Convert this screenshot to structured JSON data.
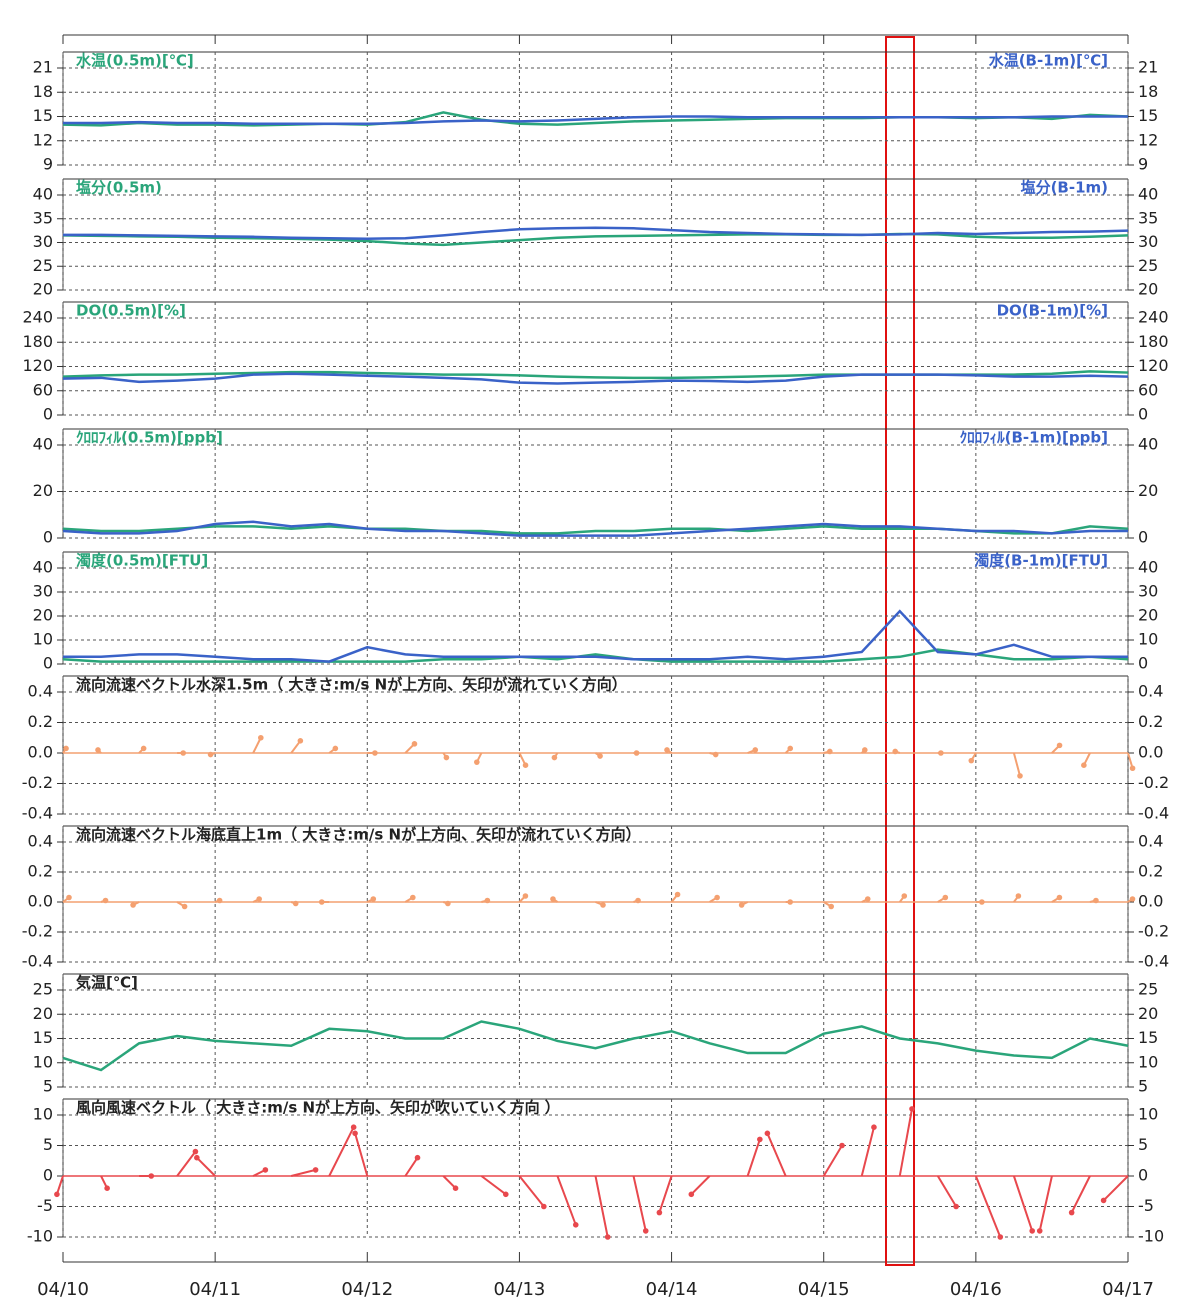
{
  "chart_data": [
    {
      "type": "line",
      "title": "水温(0.5m)[℃]",
      "title_right": "水温(B-1m)[℃]",
      "ylim": [
        9,
        21
      ],
      "yticks": [
        9,
        12,
        15,
        18,
        21
      ],
      "xlim": [
        0,
        7
      ],
      "xticks": [
        0,
        1,
        2,
        3,
        4,
        5,
        6,
        7
      ],
      "x": [
        0,
        0.25,
        0.5,
        0.75,
        1,
        1.25,
        1.5,
        1.75,
        2,
        2.25,
        2.5,
        2.75,
        3,
        3.25,
        3.5,
        3.75,
        4,
        4.25,
        4.5,
        4.75,
        5,
        5.25,
        5.5,
        5.75,
        6,
        6.25,
        6.5,
        6.75,
        7
      ],
      "series": [
        {
          "color": "#2aa57a",
          "values": [
            14.0,
            13.9,
            14.2,
            14.0,
            14.0,
            13.9,
            14.0,
            14.1,
            14.0,
            14.3,
            15.5,
            14.6,
            14.1,
            14.0,
            14.2,
            14.4,
            14.5,
            14.6,
            14.7,
            14.8,
            14.8,
            14.8,
            14.9,
            14.9,
            14.8,
            14.9,
            14.7,
            15.2,
            15.0
          ]
        },
        {
          "color": "#3a62c8",
          "values": [
            14.2,
            14.2,
            14.3,
            14.2,
            14.2,
            14.1,
            14.1,
            14.1,
            14.1,
            14.2,
            14.4,
            14.5,
            14.4,
            14.5,
            14.7,
            14.9,
            15.0,
            15.0,
            14.9,
            14.9,
            14.9,
            14.9,
            14.9,
            14.9,
            14.9,
            14.9,
            15.0,
            15.0,
            15.0
          ]
        }
      ]
    },
    {
      "type": "line",
      "title": "塩分(0.5m)",
      "title_right": "塩分(B-1m)",
      "ylim": [
        20,
        40
      ],
      "yticks": [
        20,
        25,
        30,
        35,
        40
      ],
      "xlim": [
        0,
        7
      ],
      "xticks": [
        0,
        1,
        2,
        3,
        4,
        5,
        6,
        7
      ],
      "x": [
        0,
        0.25,
        0.5,
        0.75,
        1,
        1.25,
        1.5,
        1.75,
        2,
        2.25,
        2.5,
        2.75,
        3,
        3.25,
        3.5,
        3.75,
        4,
        4.25,
        4.5,
        4.75,
        5,
        5.25,
        5.5,
        5.75,
        6,
        6.25,
        6.5,
        6.75,
        7
      ],
      "series": [
        {
          "color": "#2aa57a",
          "values": [
            31.5,
            31.4,
            31.3,
            31.2,
            31.0,
            30.9,
            30.8,
            30.6,
            30.3,
            29.8,
            29.5,
            30.0,
            30.5,
            31.0,
            31.3,
            31.4,
            31.5,
            31.6,
            31.7,
            31.7,
            31.6,
            31.6,
            31.8,
            31.7,
            31.2,
            31.0,
            31.0,
            31.2,
            31.5
          ]
        },
        {
          "color": "#3a62c8",
          "values": [
            31.6,
            31.6,
            31.5,
            31.4,
            31.3,
            31.2,
            31.0,
            30.9,
            30.8,
            30.9,
            31.5,
            32.2,
            32.8,
            33.0,
            33.1,
            33.0,
            32.6,
            32.2,
            32.0,
            31.8,
            31.7,
            31.6,
            31.7,
            32.0,
            31.8,
            32.0,
            32.2,
            32.3,
            32.5
          ]
        }
      ]
    },
    {
      "type": "line",
      "title": "DO(0.5m)[%]",
      "title_right": "DO(B-1m)[%]",
      "ylim": [
        0,
        240
      ],
      "yticks": [
        0,
        60,
        120,
        180,
        240
      ],
      "xlim": [
        0,
        7
      ],
      "xticks": [
        0,
        1,
        2,
        3,
        4,
        5,
        6,
        7
      ],
      "x": [
        0,
        0.25,
        0.5,
        0.75,
        1,
        1.25,
        1.5,
        1.75,
        2,
        2.25,
        2.5,
        2.75,
        3,
        3.25,
        3.5,
        3.75,
        4,
        4.25,
        4.5,
        4.75,
        5,
        5.25,
        5.5,
        5.75,
        6,
        6.25,
        6.5,
        6.75,
        7
      ],
      "series": [
        {
          "color": "#2aa57a",
          "values": [
            95,
            98,
            100,
            100,
            102,
            104,
            106,
            106,
            104,
            102,
            100,
            100,
            98,
            95,
            93,
            92,
            92,
            93,
            95,
            97,
            100,
            100,
            100,
            100,
            100,
            100,
            102,
            108,
            105
          ]
        },
        {
          "color": "#3a62c8",
          "values": [
            90,
            92,
            82,
            85,
            90,
            100,
            102,
            100,
            97,
            95,
            92,
            88,
            80,
            78,
            80,
            82,
            85,
            84,
            82,
            85,
            95,
            100,
            100,
            100,
            98,
            95,
            95,
            97,
            95
          ]
        }
      ]
    },
    {
      "type": "line",
      "title": "ｸﾛﾛﾌｨﾙ(0.5m)[ppb]",
      "title_right": "ｸﾛﾛﾌｨﾙ(B-1m)[ppb]",
      "ylim": [
        0,
        40
      ],
      "yticks": [
        0,
        20,
        40
      ],
      "xlim": [
        0,
        7
      ],
      "xticks": [
        0,
        1,
        2,
        3,
        4,
        5,
        6,
        7
      ],
      "x": [
        0,
        0.25,
        0.5,
        0.75,
        1,
        1.25,
        1.5,
        1.75,
        2,
        2.25,
        2.5,
        2.75,
        3,
        3.25,
        3.5,
        3.75,
        4,
        4.25,
        4.5,
        4.75,
        5,
        5.25,
        5.5,
        5.75,
        6,
        6.25,
        6.5,
        6.75,
        7
      ],
      "series": [
        {
          "color": "#2aa57a",
          "values": [
            4,
            3,
            3,
            4,
            5,
            5,
            4,
            5,
            4,
            4,
            3,
            3,
            2,
            2,
            3,
            3,
            4,
            4,
            3,
            4,
            5,
            4,
            4,
            4,
            3,
            2,
            2,
            5,
            4
          ]
        },
        {
          "color": "#3a62c8",
          "values": [
            3,
            2,
            2,
            3,
            6,
            7,
            5,
            6,
            4,
            3,
            3,
            2,
            1,
            1,
            1,
            1,
            2,
            3,
            4,
            5,
            6,
            5,
            5,
            4,
            3,
            3,
            2,
            3,
            3
          ]
        }
      ]
    },
    {
      "type": "line",
      "title": "濁度(0.5m)[FTU]",
      "title_right": "濁度(B-1m)[FTU]",
      "ylim": [
        0,
        40
      ],
      "yticks": [
        0,
        10,
        20,
        30,
        40
      ],
      "xlim": [
        0,
        7
      ],
      "xticks": [
        0,
        1,
        2,
        3,
        4,
        5,
        6,
        7
      ],
      "x": [
        0,
        0.25,
        0.5,
        0.75,
        1,
        1.25,
        1.5,
        1.75,
        2,
        2.25,
        2.5,
        2.75,
        3,
        3.25,
        3.5,
        3.75,
        4,
        4.25,
        4.5,
        4.75,
        5,
        5.25,
        5.5,
        5.75,
        6,
        6.25,
        6.5,
        6.75,
        7
      ],
      "series": [
        {
          "color": "#2aa57a",
          "values": [
            2,
            1,
            1,
            1,
            1,
            1,
            1,
            1,
            1,
            1,
            2,
            2,
            3,
            2,
            4,
            2,
            1,
            1,
            1,
            1,
            1,
            2,
            3,
            6,
            4,
            2,
            2,
            3,
            2
          ]
        },
        {
          "color": "#3a62c8",
          "values": [
            3,
            3,
            4,
            4,
            3,
            2,
            2,
            1,
            7,
            4,
            3,
            3,
            3,
            3,
            3,
            2,
            2,
            2,
            3,
            2,
            3,
            5,
            22,
            5,
            4,
            8,
            3,
            3,
            3
          ]
        }
      ]
    },
    {
      "type": "vector",
      "title": "流向流速ベクトル水深1.5m（ 大きさ:m/s  Nが上方向、矢印が流れていく方向）",
      "ylim": [
        -0.4,
        0.4
      ],
      "yticks": [
        -0.4,
        -0.2,
        {
          "value": 0,
          "label": "0.0"
        },
        0.2,
        0.4
      ],
      "xlim": [
        0,
        7
      ],
      "xticks": [
        0,
        1,
        2,
        3,
        4,
        5,
        6,
        7
      ],
      "color": "#f4a070",
      "x": [
        0,
        0.25,
        0.5,
        0.75,
        1,
        1.25,
        1.5,
        1.75,
        2,
        2.25,
        2.5,
        2.75,
        3,
        3.25,
        3.5,
        3.75,
        4,
        4.25,
        4.5,
        4.75,
        5,
        5.25,
        5.5,
        5.75,
        6,
        6.25,
        6.5,
        6.75,
        7
      ],
      "u": [
        0.02,
        -0.02,
        0.03,
        0.04,
        -0.03,
        0.05,
        0.06,
        0.04,
        0.05,
        0.06,
        0.02,
        -0.03,
        0.04,
        -0.02,
        0.03,
        0.02,
        -0.03,
        0.04,
        0.05,
        0.03,
        0.04,
        0.02,
        -0.03,
        0.02,
        -0.03,
        0.04,
        0.05,
        -0.04,
        0.03
      ],
      "v": [
        0.03,
        0.02,
        0.03,
        0,
        -0.01,
        0.1,
        0.08,
        0.03,
        0,
        0.06,
        -0.03,
        -0.06,
        -0.08,
        -0.03,
        -0.02,
        0,
        0.02,
        -0.01,
        0.02,
        0.03,
        0.01,
        0.02,
        0.01,
        0,
        -0.05,
        -0.15,
        0.05,
        -0.08,
        -0.1
      ]
    },
    {
      "type": "vector",
      "title": "流向流速ベクトル海底直上1m（ 大きさ:m/s  Nが上方向、矢印が流れていく方向）",
      "ylim": [
        -0.4,
        0.4
      ],
      "yticks": [
        -0.4,
        -0.2,
        {
          "value": 0,
          "label": "0.0"
        },
        0.2,
        0.4
      ],
      "xlim": [
        0,
        7
      ],
      "xticks": [
        0,
        1,
        2,
        3,
        4,
        5,
        6,
        7
      ],
      "color": "#f4a070",
      "x": [
        0,
        0.25,
        0.5,
        0.75,
        1,
        1.25,
        1.5,
        1.75,
        2,
        2.25,
        2.5,
        2.75,
        3,
        3.25,
        3.5,
        3.75,
        4,
        4.25,
        4.5,
        4.75,
        5,
        5.25,
        5.5,
        5.75,
        6,
        6.25,
        6.5,
        6.75,
        7
      ],
      "u": [
        0.04,
        0.03,
        -0.04,
        0.05,
        0.03,
        0.04,
        0.03,
        -0.05,
        0.04,
        0.05,
        0.03,
        0.04,
        0.04,
        -0.03,
        0.05,
        0.03,
        0.04,
        0.05,
        -0.04,
        0.03,
        0.05,
        0.04,
        0.03,
        0.05,
        0.04,
        0.03,
        0.05,
        0.04,
        0.03
      ],
      "v": [
        0.03,
        0.01,
        -0.02,
        -0.03,
        0.01,
        0.02,
        -0.01,
        0,
        0.02,
        0.03,
        -0.01,
        0.01,
        0.04,
        0.02,
        -0.02,
        0.01,
        0.05,
        0.03,
        -0.02,
        0,
        -0.03,
        0.02,
        0.04,
        0.03,
        0,
        0.04,
        0.03,
        0.01,
        0.02
      ]
    },
    {
      "type": "line",
      "title": "気温[℃]",
      "ylim": [
        5,
        25
      ],
      "yticks": [
        5,
        10,
        15,
        20,
        25
      ],
      "xlim": [
        0,
        7
      ],
      "xticks": [
        0,
        1,
        2,
        3,
        4,
        5,
        6,
        7
      ],
      "x": [
        0,
        0.25,
        0.5,
        0.75,
        1,
        1.25,
        1.5,
        1.75,
        2,
        2.25,
        2.5,
        2.75,
        3,
        3.25,
        3.5,
        3.75,
        4,
        4.25,
        4.5,
        4.75,
        5,
        5.25,
        5.5,
        5.75,
        6,
        6.25,
        6.5,
        6.75,
        7
      ],
      "series": [
        {
          "color": "#2aa57a",
          "values": [
            11,
            8.5,
            14,
            15.5,
            14.5,
            14,
            13.5,
            17,
            16.5,
            15,
            15,
            18.5,
            17,
            14.5,
            13,
            15,
            16.5,
            14,
            12,
            12,
            16,
            17.5,
            15,
            14,
            12.5,
            11.5,
            11,
            15,
            13.5
          ]
        }
      ]
    },
    {
      "type": "vector",
      "title": "風向風速ベクトル（ 大きさ:m/s  Nが上方向、矢印が吹いていく方向 ）",
      "ylim": [
        -10,
        10
      ],
      "yticks": [
        -10,
        -5,
        0,
        5,
        10
      ],
      "xlim": [
        0,
        7
      ],
      "xticks": [
        {
          "value": 0,
          "label": "04/10"
        },
        {
          "value": 1,
          "label": "04/11"
        },
        {
          "value": 2,
          "label": "04/12"
        },
        {
          "value": 3,
          "label": "04/13"
        },
        {
          "value": 4,
          "label": "04/14"
        },
        {
          "value": 5,
          "label": "04/15"
        },
        {
          "value": 6,
          "label": "04/16"
        },
        {
          "value": 7,
          "label": "04/17"
        }
      ],
      "color": "#e8484d",
      "x": [
        0,
        0.25,
        0.5,
        0.75,
        1,
        1.25,
        1.5,
        1.75,
        2,
        2.25,
        2.5,
        2.75,
        3,
        3.25,
        3.5,
        3.75,
        4,
        4.25,
        4.5,
        4.75,
        5,
        5.25,
        5.5,
        5.75,
        6,
        6.25,
        6.5,
        6.75,
        7
      ],
      "u": [
        -1,
        1,
        2,
        3,
        -3,
        2,
        4,
        4,
        -2,
        2,
        2,
        4,
        4,
        3,
        2,
        2,
        -2,
        -3,
        2,
        -3,
        3,
        2,
        2,
        3,
        4,
        3,
        -2,
        -3,
        -4
      ],
      "v": [
        -3,
        -2,
        0,
        4,
        3,
        1,
        1,
        8,
        7,
        3,
        -2,
        -3,
        -5,
        -8,
        -10,
        -9,
        -6,
        -3,
        6,
        7,
        5,
        8,
        11,
        -5,
        -10,
        -9,
        -9,
        -6,
        -4
      ]
    }
  ]
}
